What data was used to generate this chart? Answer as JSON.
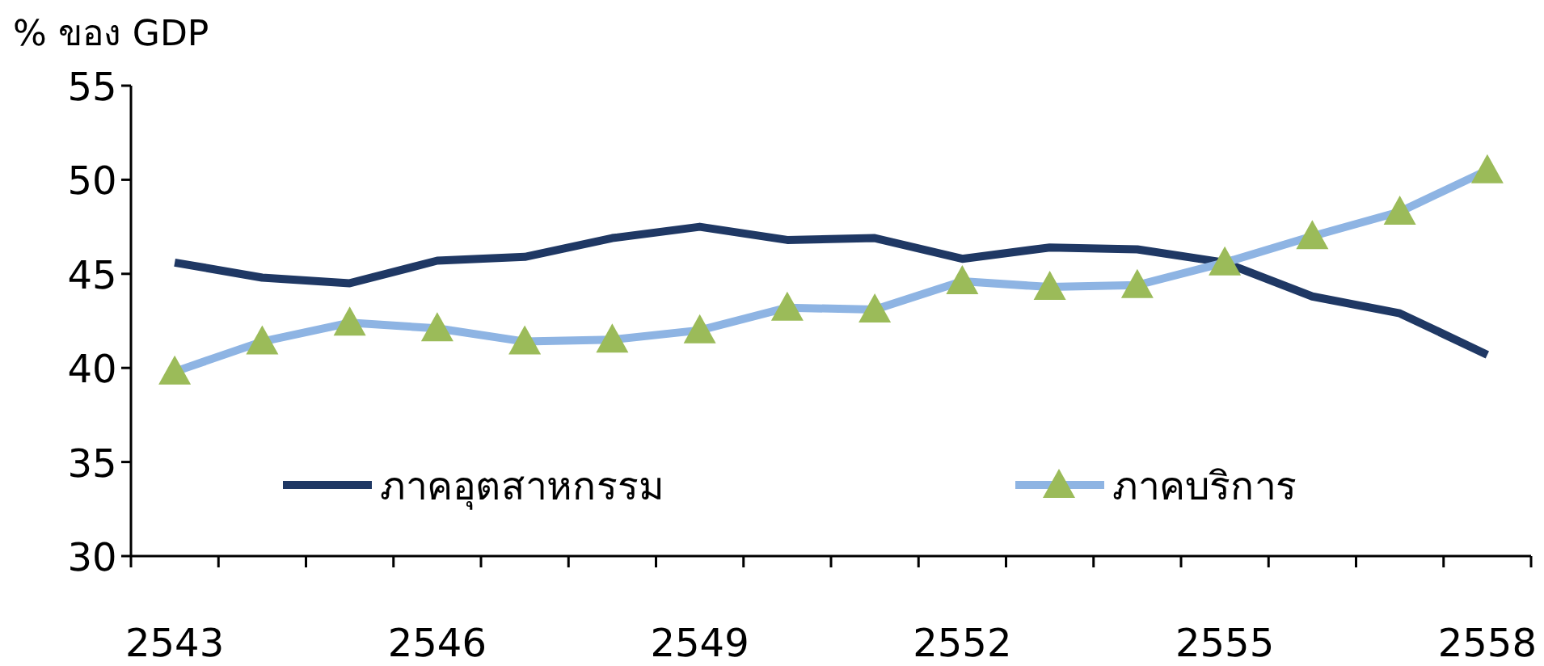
{
  "chart_data": {
    "type": "line",
    "ylabel": "% ของ GDP",
    "categories": [
      "2543",
      null,
      null,
      "2546",
      null,
      null,
      "2549",
      null,
      null,
      "2552",
      null,
      null,
      "2555",
      null,
      null,
      "2558"
    ],
    "series": [
      {
        "name": "ภาคอุตสาหกรรม",
        "color": "#1f3864",
        "marker": "none",
        "values": [
          45.6,
          44.8,
          44.5,
          45.7,
          45.9,
          46.9,
          47.5,
          46.8,
          46.9,
          45.8,
          46.4,
          46.3,
          45.6,
          43.8,
          42.9,
          40.7
        ]
      },
      {
        "name": "ภาคบริการ",
        "color": "#8eb4e3",
        "marker": "triangle",
        "colors": [
          "#9bbb59",
          "#9bbb59",
          "#9bbb59",
          "#9bbb59",
          "#9bbb59",
          "#9bbb59",
          "#9bbb59",
          "#9bbb59",
          "#9bbb59",
          "#9bbb59",
          "#9bbb59",
          "#9bbb59",
          "#9bbb59",
          "#9bbb59",
          "#9bbb59",
          "#9bbb59"
        ],
        "values": [
          39.8,
          41.4,
          42.4,
          42.1,
          41.4,
          41.5,
          42.0,
          43.2,
          43.1,
          44.6,
          44.3,
          44.4,
          45.6,
          47.0,
          48.3,
          50.5
        ]
      }
    ],
    "ylim": [
      30,
      55
    ],
    "yticks": [
      30,
      35,
      40,
      45,
      50,
      55
    ],
    "grid": false,
    "legend": "bottom"
  }
}
